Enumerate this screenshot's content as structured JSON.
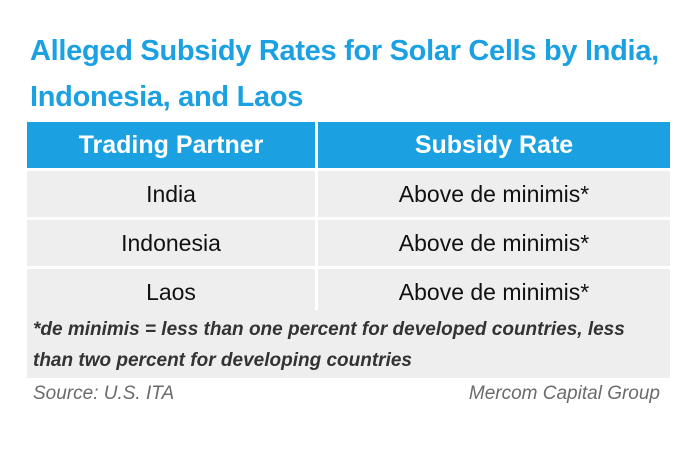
{
  "chart_data": {
    "type": "table",
    "title": "Alleged Subsidy Rates for Solar Cells by India, Indonesia, and Laos",
    "columns": [
      "Trading Partner",
      "Subsidy Rate"
    ],
    "rows": [
      [
        "India",
        "Above de minimis*"
      ],
      [
        "Indonesia",
        "Above de minimis*"
      ],
      [
        "Laos",
        "Above de minimis*"
      ]
    ],
    "footnote": "*de minimis = less than one percent for developed countries, less than two percent for developing countries",
    "source": "Source: U.S. ITA",
    "credit": "Mercom Capital Group"
  },
  "colors": {
    "accent": "#1ba1e2",
    "row_background": "#eeeeee"
  }
}
